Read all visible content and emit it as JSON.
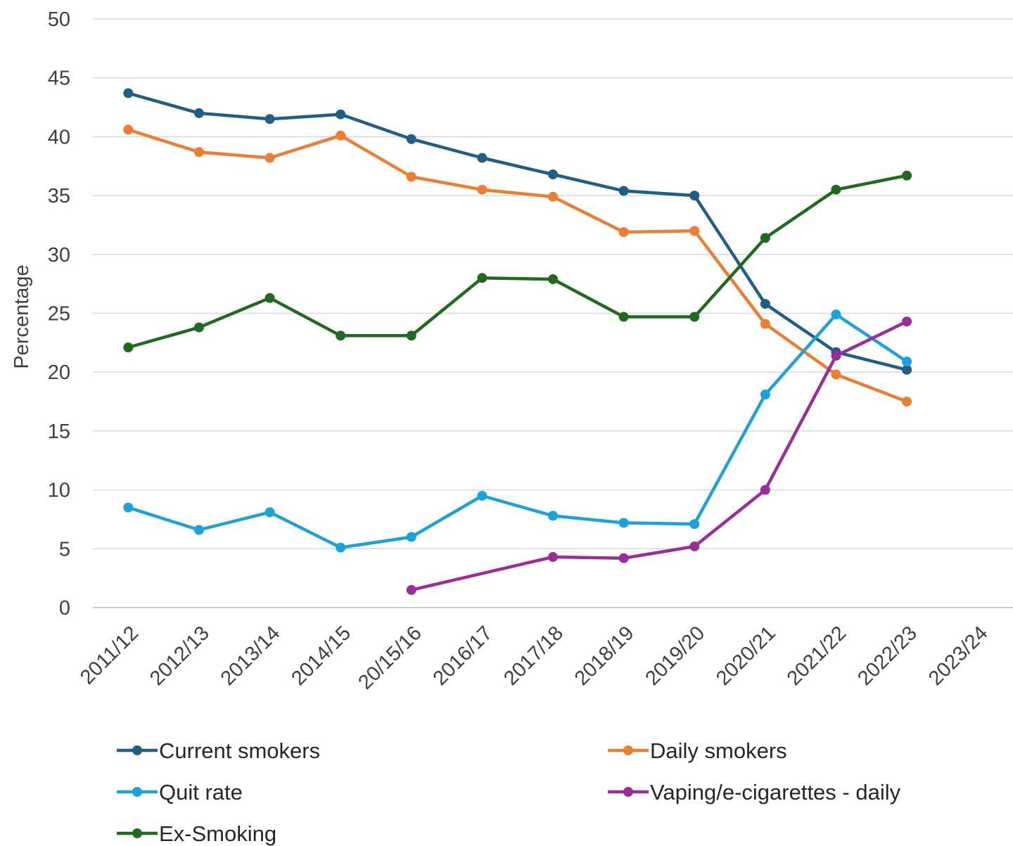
{
  "chart_data": {
    "type": "line",
    "title": "",
    "xlabel": "",
    "ylabel": "Percentage",
    "ylim": [
      0,
      50
    ],
    "yticks": [
      0,
      5,
      10,
      15,
      20,
      25,
      30,
      35,
      40,
      45,
      50
    ],
    "grid": "horizontal",
    "legend_position": "bottom",
    "categories": [
      "2011/12",
      "2012/13",
      "2013/14",
      "2014/15",
      "20/15/16",
      "2016/17",
      "2017/18",
      "2018/19",
      "2019/20",
      "2020/21",
      "2021/22",
      "2022/23",
      "2023/24"
    ],
    "series": [
      {
        "name": "Current smokers",
        "color": "#1f5f86",
        "values": [
          43.7,
          42.0,
          41.5,
          41.9,
          39.8,
          38.2,
          36.8,
          35.4,
          35.0,
          25.8,
          21.7,
          20.2,
          null
        ]
      },
      {
        "name": "Daily smokers",
        "color": "#ed7d31",
        "values": [
          40.6,
          38.7,
          38.2,
          40.1,
          36.6,
          35.5,
          34.9,
          31.9,
          32.0,
          24.1,
          19.8,
          17.5,
          null
        ]
      },
      {
        "name": "Quit rate",
        "color": "#1ba1dc",
        "values": [
          8.5,
          6.6,
          8.1,
          5.1,
          6.0,
          9.5,
          7.8,
          7.2,
          7.1,
          18.1,
          24.9,
          20.9,
          null
        ]
      },
      {
        "name": "Vaping/e-cigarettes - daily",
        "color": "#9b2c9a",
        "values": [
          null,
          null,
          null,
          null,
          1.5,
          null,
          4.3,
          4.2,
          5.2,
          10.0,
          21.4,
          24.3,
          null
        ]
      },
      {
        "name": "Ex-Smoking",
        "color": "#1e6b1e",
        "values": [
          22.1,
          23.8,
          26.3,
          23.1,
          23.1,
          28.0,
          27.9,
          24.7,
          24.7,
          31.4,
          35.5,
          36.7,
          null
        ]
      }
    ]
  }
}
